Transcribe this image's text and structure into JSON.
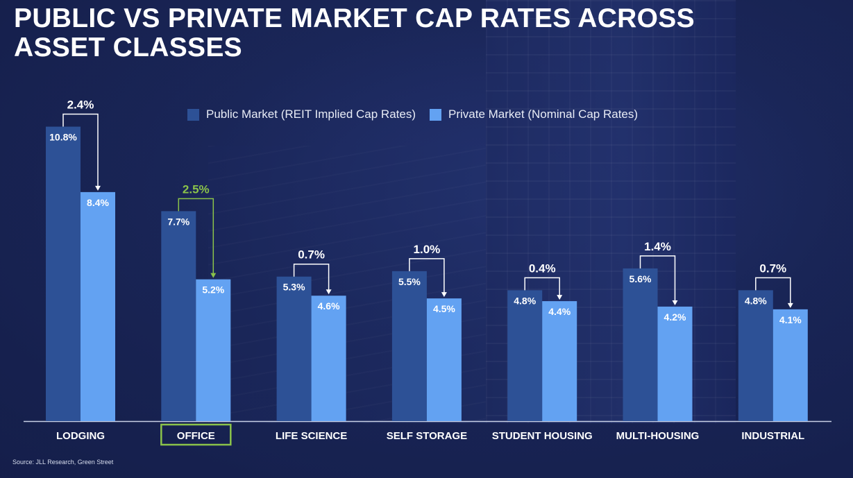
{
  "title": "PUBLIC VS PRIVATE MARKET CAP RATES ACROSS ASSET CLASSES",
  "source": "Source: JLL Research, Green Street",
  "colors": {
    "public": "#2d5196",
    "private": "#63a2f2",
    "highlight": "#8bc34a",
    "annotation": "#ffffff",
    "axis": "#c9d1e6"
  },
  "chart_data": {
    "type": "bar",
    "title": "PUBLIC VS PRIVATE MARKET CAP RATES ACROSS ASSET CLASSES",
    "categories": [
      "LODGING",
      "OFFICE",
      "LIFE SCIENCE",
      "SELF STORAGE",
      "STUDENT HOUSING",
      "MULTI-HOUSING",
      "INDUSTRIAL"
    ],
    "series": [
      {
        "name": "Public Market (REIT Implied Cap Rates)",
        "values": [
          10.8,
          7.7,
          5.3,
          5.5,
          4.8,
          5.6,
          4.8
        ],
        "labels": [
          "10.8%",
          "7.7%",
          "5.3%",
          "5.5%",
          "4.8%",
          "5.6%",
          "4.8%"
        ]
      },
      {
        "name": "Private Market (Nominal Cap Rates)",
        "values": [
          8.4,
          5.2,
          4.6,
          4.5,
          4.4,
          4.2,
          4.1
        ],
        "labels": [
          "8.4%",
          "5.2%",
          "4.6%",
          "4.5%",
          "4.4%",
          "4.2%",
          "4.1%"
        ]
      }
    ],
    "spreads": [
      "2.4%",
      "2.5%",
      "0.7%",
      "1.0%",
      "0.4%",
      "1.4%",
      "0.7%"
    ],
    "highlighted_category": "OFFICE",
    "xlabel": "",
    "ylabel": "",
    "ylim": [
      0,
      10.8
    ],
    "legend": "top-center",
    "grid": false
  }
}
